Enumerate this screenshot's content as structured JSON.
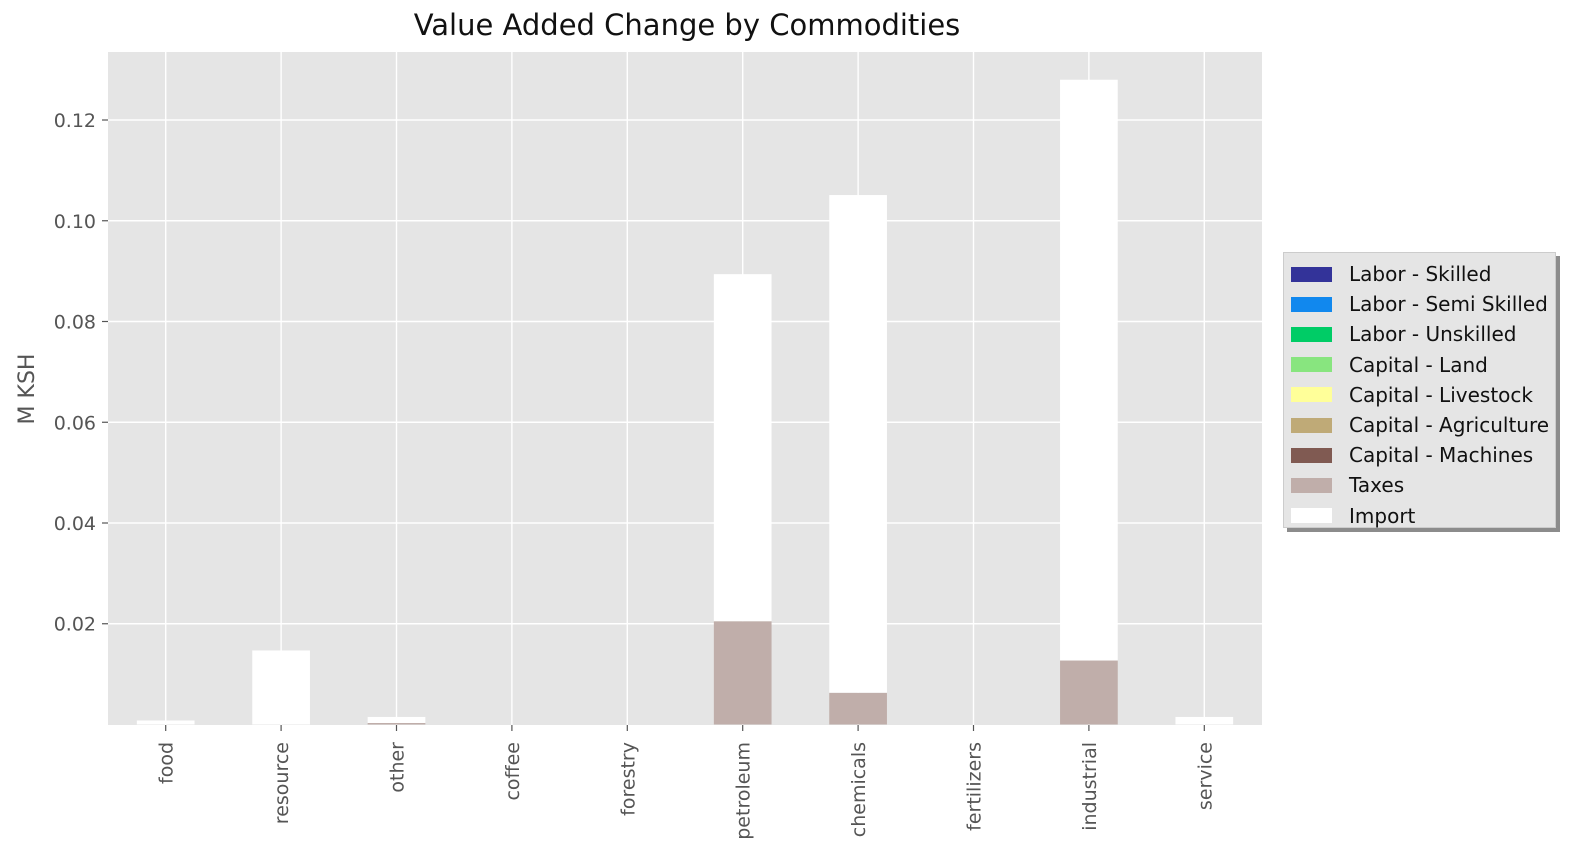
{
  "chart_data": {
    "type": "bar",
    "stacked": true,
    "title": "Value Added Change by Commodities",
    "xlabel": "",
    "ylabel": "M KSH",
    "ylim": [
      -0.0001,
      0.1335
    ],
    "yticks": [
      0.02,
      0.04,
      0.06,
      0.08,
      0.1,
      0.12
    ],
    "ytick_labels": [
      "0.02",
      "0.04",
      "0.06",
      "0.08",
      "0.10",
      "0.12"
    ],
    "categories": [
      "food",
      "resource",
      "other",
      "coffee",
      "forestry",
      "petroleum",
      "chemicals",
      "fertilizers",
      "industrial",
      "service"
    ],
    "series": [
      {
        "name": "Labor - Skilled",
        "color": "#333399",
        "values": [
          0,
          0,
          0,
          0,
          0,
          0,
          0,
          0,
          0,
          0
        ]
      },
      {
        "name": "Labor - Semi Skilled",
        "color": "#1188ee",
        "values": [
          0,
          0,
          0,
          0,
          0,
          0,
          0,
          0,
          0,
          0
        ]
      },
      {
        "name": "Labor - Unskilled",
        "color": "#00cc66",
        "values": [
          0,
          0,
          0,
          0,
          0,
          0,
          0,
          0,
          0,
          0
        ]
      },
      {
        "name": "Capital - Land",
        "color": "#88e57f",
        "values": [
          0,
          0,
          0,
          0,
          0,
          0,
          0,
          0,
          0,
          0
        ]
      },
      {
        "name": "Capital - Livestock",
        "color": "#ffff99",
        "values": [
          0,
          0,
          0,
          0,
          0,
          0,
          0,
          0,
          0,
          0
        ]
      },
      {
        "name": "Capital - Agriculture",
        "color": "#bfaa77",
        "values": [
          0,
          0,
          0,
          0,
          0,
          0,
          0,
          0,
          0,
          0
        ]
      },
      {
        "name": "Capital - Machines",
        "color": "#805a52",
        "values": [
          0,
          0,
          0,
          0,
          0,
          0,
          0,
          0,
          0,
          0
        ]
      },
      {
        "name": "Taxes",
        "color": "#c0aeaa",
        "values": [
          0,
          0,
          0.0003,
          0,
          0,
          0.0205,
          0.0063,
          0,
          0.0127,
          0
        ]
      },
      {
        "name": "Import",
        "color": "#ffffff",
        "values": [
          0.0008,
          0.0147,
          0.0012,
          0,
          0,
          0.0689,
          0.0988,
          0,
          0.1153,
          0.0015
        ]
      }
    ],
    "grid": true,
    "legend_position": "center-right, outside"
  }
}
